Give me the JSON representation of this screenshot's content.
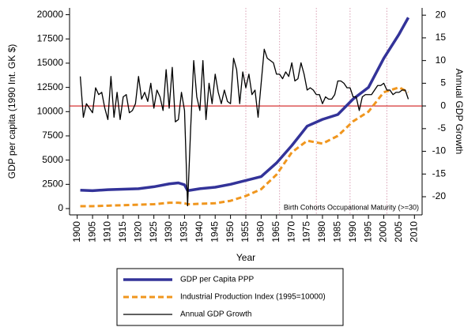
{
  "chart_data": {
    "type": "line",
    "xlabel": "Year",
    "ylabel": "GDP per capita (1990 Int. GK $)",
    "y2label": "Annual GDP Growth",
    "annotation": "Birth Cohorts Occupational Maturity (>=30)",
    "xlim": [
      1897.5,
      2012.5
    ],
    "xticks": [
      1900,
      1905,
      1910,
      1915,
      1920,
      1925,
      1930,
      1935,
      1940,
      1945,
      1950,
      1955,
      1960,
      1965,
      1970,
      1975,
      1980,
      1985,
      1990,
      1995,
      2000,
      2005,
      2010
    ],
    "ylim": [
      -650,
      20700
    ],
    "yticks": [
      0,
      2500,
      5000,
      7500,
      10000,
      12500,
      15000,
      17500,
      20000
    ],
    "y2lim": [
      -24,
      21.6
    ],
    "y2ticks": [
      -20,
      -15,
      -10,
      -5,
      0,
      5,
      10,
      15,
      20
    ],
    "reference_line": {
      "value": 0,
      "axis": "y2",
      "color": "#cc0000"
    },
    "cohort_lines": {
      "x": [
        1955,
        1966,
        1978,
        1989,
        2001
      ],
      "color": "#d9a0b4"
    },
    "series": [
      {
        "name": "GDP per Capita PPP",
        "color": "#333399",
        "style": "solid",
        "width": 3.5,
        "x": [
          1901,
          1905,
          1910,
          1915,
          1920,
          1925,
          1930,
          1933,
          1935,
          1936,
          1937,
          1940,
          1945,
          1950,
          1955,
          1960,
          1965,
          1970,
          1975,
          1980,
          1985,
          1990,
          1995,
          2000,
          2005,
          2008
        ],
        "values": [
          1900,
          1850,
          1950,
          2000,
          2050,
          2250,
          2550,
          2650,
          2450,
          1850,
          1900,
          2050,
          2200,
          2500,
          2900,
          3300,
          4700,
          6500,
          8500,
          9200,
          9700,
          11300,
          12500,
          15500,
          18000,
          19700
        ]
      },
      {
        "name": "Industrial Production Index (1995=10000)",
        "color": "#f0961e",
        "style": "dashed",
        "width": 3,
        "x": [
          1901,
          1905,
          1910,
          1915,
          1920,
          1925,
          1930,
          1933,
          1935,
          1936,
          1937,
          1940,
          1945,
          1950,
          1955,
          1960,
          1965,
          1970,
          1975,
          1980,
          1985,
          1990,
          1995,
          2000,
          2005,
          2008
        ],
        "values": [
          250,
          250,
          300,
          350,
          400,
          450,
          600,
          600,
          550,
          450,
          450,
          500,
          550,
          800,
          1300,
          2000,
          3500,
          5800,
          7000,
          6700,
          7500,
          9000,
          10000,
          12000,
          12500,
          12000
        ]
      },
      {
        "name": "Annual GDP Growth",
        "color": "#000000",
        "style": "solid",
        "width": 1.3,
        "axis": "y2",
        "x": [
          1901,
          1902,
          1903,
          1904,
          1905,
          1906,
          1907,
          1908,
          1909,
          1910,
          1911,
          1912,
          1913,
          1914,
          1915,
          1916,
          1917,
          1918,
          1919,
          1920,
          1921,
          1922,
          1923,
          1924,
          1925,
          1926,
          1927,
          1928,
          1929,
          1930,
          1931,
          1932,
          1933,
          1934,
          1935,
          1936,
          1937,
          1938,
          1939,
          1940,
          1941,
          1942,
          1943,
          1944,
          1945,
          1946,
          1947,
          1948,
          1949,
          1950,
          1951,
          1952,
          1953,
          1954,
          1955,
          1956,
          1957,
          1958,
          1959,
          1960,
          1961,
          1962,
          1963,
          1964,
          1965,
          1966,
          1967,
          1968,
          1969,
          1970,
          1971,
          1972,
          1973,
          1974,
          1975,
          1976,
          1977,
          1978,
          1979,
          1980,
          1981,
          1982,
          1983,
          1984,
          1985,
          1986,
          1987,
          1988,
          1989,
          1990,
          1991,
          1992,
          1993,
          1994,
          1995,
          1996,
          1997,
          1998,
          1999,
          2000,
          2001,
          2002,
          2003,
          2004,
          2005,
          2006,
          2007,
          2008
        ],
        "values": [
          6.5,
          -2.5,
          0.5,
          -0.5,
          -1.5,
          4,
          2.5,
          3,
          -0.5,
          -3,
          6.5,
          -2.5,
          3,
          -3,
          2,
          2.5,
          -1.5,
          -1,
          0.5,
          6.5,
          1.5,
          3,
          1,
          5,
          -0.5,
          3.5,
          2,
          -1,
          8,
          -0.5,
          8.5,
          -3.5,
          -3,
          3,
          -1,
          -22,
          -5,
          10,
          2,
          -1,
          10,
          -3,
          5,
          0.5,
          7,
          3,
          0.5,
          3.5,
          1,
          0.5,
          10.5,
          8,
          0.5,
          7.5,
          4,
          7,
          2.5,
          3.5,
          -2.5,
          5,
          12.5,
          10.5,
          10,
          9.5,
          7,
          7,
          6,
          7.5,
          6.5,
          9.5,
          5.5,
          6,
          9.5,
          7,
          3.5,
          4,
          3.5,
          2.5,
          2.5,
          0.5,
          2,
          1.5,
          1.5,
          2.5,
          5.5,
          5.5,
          5,
          4,
          4,
          2,
          2,
          -1,
          2,
          2.5,
          2.5,
          2.5,
          3.5,
          4.5,
          4.5,
          5,
          3.5,
          3.5,
          2.5,
          3,
          3,
          3.5,
          3.5,
          1.5
        ]
      }
    ]
  }
}
